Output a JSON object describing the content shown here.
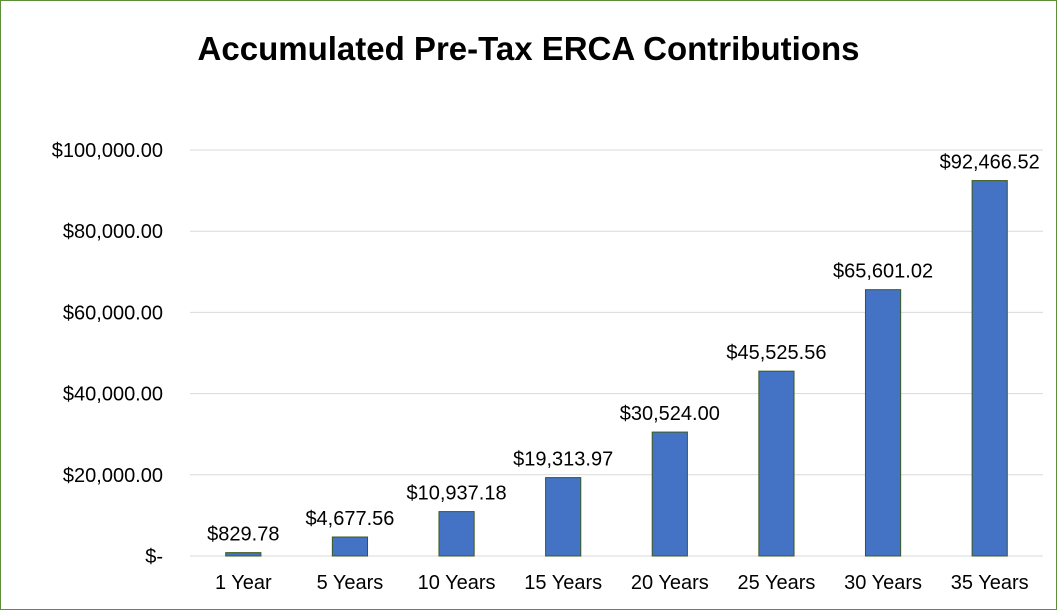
{
  "chart_data": {
    "type": "bar",
    "title": "Accumulated Pre-Tax ERCA Contributions",
    "categories": [
      "1 Year",
      "5 Years",
      "10 Years",
      "15 Years",
      "20 Years",
      "25 Years",
      "30 Years",
      "35 Years"
    ],
    "values": [
      829.78,
      4677.56,
      10937.18,
      19313.97,
      30524.0,
      45525.56,
      65601.02,
      92466.52
    ],
    "data_labels": [
      "$829.78",
      "$4,677.56",
      "$10,937.18",
      "$19,313.97",
      "$30,524.00",
      "$45,525.56",
      "$65,601.02",
      "$92,466.52"
    ],
    "y_ticks": [
      0,
      20000,
      40000,
      60000,
      80000,
      100000
    ],
    "y_tick_labels": [
      "$-",
      "$20,000.00",
      "$40,000.00",
      "$60,000.00",
      "$80,000.00",
      "$100,000.00"
    ],
    "ylim": [
      0,
      100000
    ],
    "xlabel": "",
    "ylabel": "",
    "grid": true,
    "legend": "none",
    "colors": {
      "bar_fill": "#4472c4",
      "bar_stroke": "#3a5a1e",
      "gridline": "#d9d9d9",
      "frame_border": "#5b8f3a"
    }
  }
}
